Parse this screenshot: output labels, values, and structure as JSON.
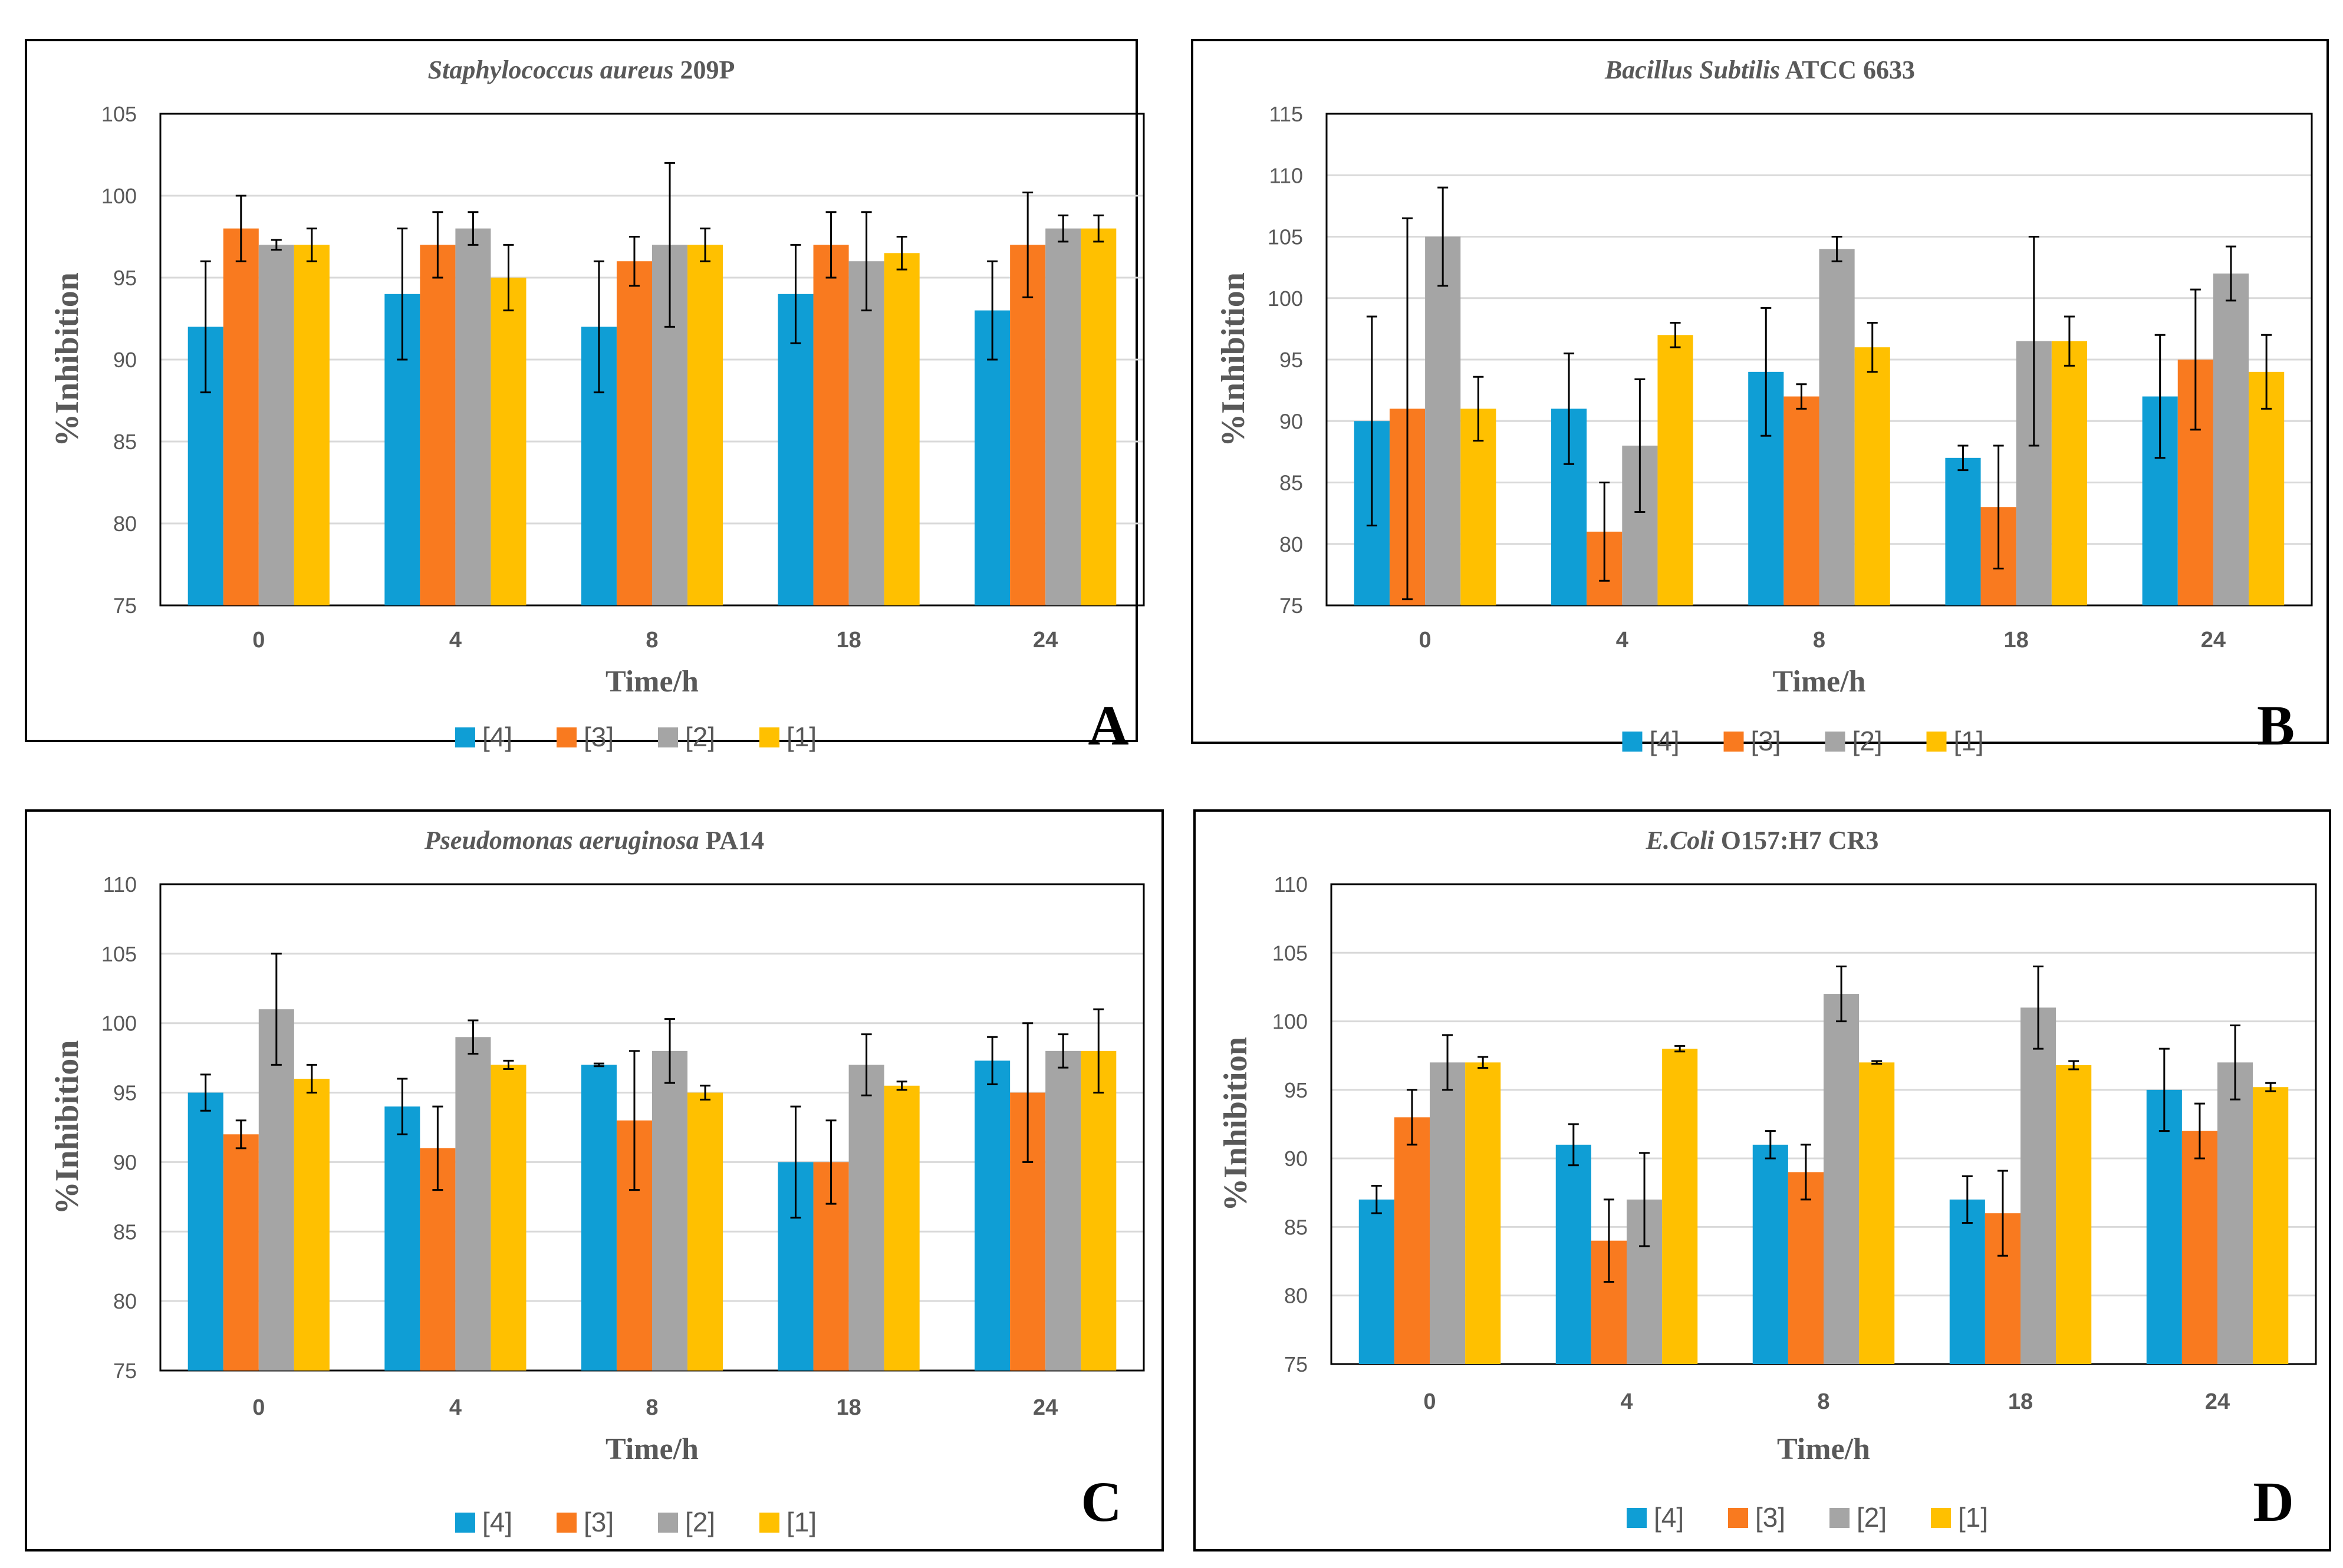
{
  "figure": {
    "colors": {
      "series": [
        "#0f9ed5",
        "#f97a1f",
        "#a5a5a5",
        "#ffc000"
      ],
      "frame": "#000000",
      "grid": "#d9d9d9",
      "text": "#595959"
    },
    "legend_labels": [
      "[4]",
      "[3]",
      "[2]",
      "[1]"
    ],
    "xlabel": "Time/h",
    "ylabel": "%Inhibition"
  },
  "chart_data": [
    {
      "type": "bar",
      "panel": "A",
      "title_italic": "Staphylococcus aureus",
      "title_rest": " 209P",
      "xlabel": "Time/h",
      "ylabel": "%Inhibition",
      "categories": [
        "0",
        "4",
        "8",
        "18",
        "24"
      ],
      "ylim": [
        75,
        105
      ],
      "yticks": [
        75,
        80,
        85,
        90,
        95,
        100,
        105
      ],
      "grid": true,
      "legend": "bottom",
      "series": [
        {
          "name": "[4]",
          "values": [
            92,
            94,
            92,
            94,
            93
          ],
          "errors": [
            4,
            4,
            4,
            3,
            3
          ]
        },
        {
          "name": "[3]",
          "values": [
            98,
            97,
            96,
            97,
            97
          ],
          "errors": [
            2,
            2,
            1.5,
            2,
            3.2
          ]
        },
        {
          "name": "[2]",
          "values": [
            97,
            98,
            97,
            96,
            98
          ],
          "errors": [
            0.3,
            1,
            5,
            3,
            0.8
          ]
        },
        {
          "name": "[1]",
          "values": [
            97,
            95,
            97,
            96.5,
            98
          ],
          "errors": [
            1,
            2,
            1,
            1,
            0.8
          ]
        }
      ]
    },
    {
      "type": "bar",
      "panel": "B",
      "title_italic": "Bacillus Subtilis",
      "title_rest": " ATCC 6633",
      "xlabel": "Time/h",
      "ylabel": "%Inhibition",
      "categories": [
        "0",
        "4",
        "8",
        "18",
        "24"
      ],
      "ylim": [
        75,
        115
      ],
      "yticks": [
        75,
        80,
        85,
        90,
        95,
        100,
        105,
        110,
        115
      ],
      "grid": true,
      "legend": "bottom",
      "series": [
        {
          "name": "[4]",
          "values": [
            90,
            91,
            94,
            87,
            92
          ],
          "errors": [
            8.5,
            4.5,
            5.2,
            1,
            5
          ]
        },
        {
          "name": "[3]",
          "values": [
            91,
            81,
            92,
            83,
            95
          ],
          "errors": [
            15.5,
            4,
            1,
            5,
            5.7
          ]
        },
        {
          "name": "[2]",
          "values": [
            105,
            88,
            104,
            96.5,
            102
          ],
          "errors": [
            4,
            5.4,
            1,
            8.5,
            2.2
          ]
        },
        {
          "name": "[1]",
          "values": [
            91,
            97,
            96,
            96.5,
            94
          ],
          "errors": [
            2.6,
            1,
            2,
            2,
            3
          ]
        }
      ]
    },
    {
      "type": "bar",
      "panel": "C",
      "title_italic": "Pseudomonas aeruginosa",
      "title_rest": " PA14",
      "xlabel": "Time/h",
      "ylabel": "%Inhibition",
      "categories": [
        "0",
        "4",
        "8",
        "18",
        "24"
      ],
      "ylim": [
        75,
        110
      ],
      "yticks": [
        75,
        80,
        85,
        90,
        95,
        100,
        105,
        110
      ],
      "grid": true,
      "legend": "bottom",
      "series": [
        {
          "name": "[4]",
          "values": [
            95,
            94,
            97,
            90,
            97.3
          ],
          "errors": [
            1.3,
            2,
            0.1,
            4,
            1.7
          ]
        },
        {
          "name": "[3]",
          "values": [
            92,
            91,
            93,
            90,
            95
          ],
          "errors": [
            1,
            3,
            5,
            3,
            5
          ]
        },
        {
          "name": "[2]",
          "values": [
            101,
            99,
            98,
            97,
            98
          ],
          "errors": [
            4,
            1.2,
            2.3,
            2.2,
            1.2
          ]
        },
        {
          "name": "[1]",
          "values": [
            96,
            97,
            95,
            95.5,
            98
          ],
          "errors": [
            1,
            0.3,
            0.5,
            0.3,
            3
          ]
        }
      ]
    },
    {
      "type": "bar",
      "panel": "D",
      "title_italic": "E.Coli",
      "title_rest": " O157:H7 CR3",
      "xlabel": "Time/h",
      "ylabel": "%Inhibition",
      "categories": [
        "0",
        "4",
        "8",
        "18",
        "24"
      ],
      "ylim": [
        75,
        110
      ],
      "yticks": [
        75,
        80,
        85,
        90,
        95,
        100,
        105,
        110
      ],
      "grid": true,
      "legend": "bottom",
      "series": [
        {
          "name": "[4]",
          "values": [
            87,
            91,
            91,
            87,
            95
          ],
          "errors": [
            1,
            1.5,
            1,
            1.7,
            3
          ]
        },
        {
          "name": "[3]",
          "values": [
            93,
            84,
            89,
            86,
            92
          ],
          "errors": [
            2,
            3,
            2,
            3.1,
            2
          ]
        },
        {
          "name": "[2]",
          "values": [
            97,
            87,
            102,
            101,
            97
          ],
          "errors": [
            2,
            3.4,
            2,
            3,
            2.7
          ]
        },
        {
          "name": "[1]",
          "values": [
            97,
            98,
            97,
            96.8,
            95.2
          ],
          "errors": [
            0.4,
            0.2,
            0.1,
            0.3,
            0.3
          ]
        }
      ]
    }
  ]
}
